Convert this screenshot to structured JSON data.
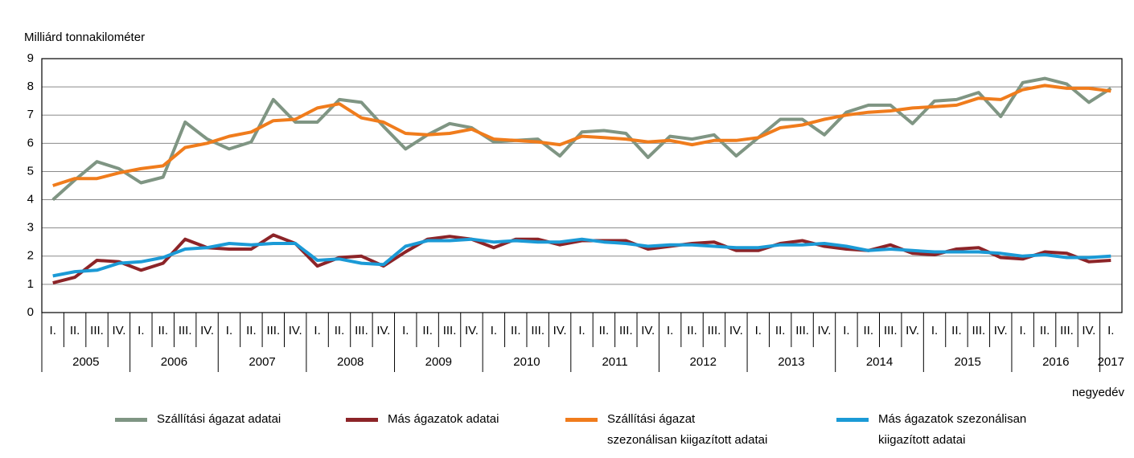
{
  "chart_data": {
    "type": "line",
    "y_axis_label": "Milliárd tonnakilométer",
    "x_axis_label": "negyedév",
    "categories": [
      "I.",
      "II.",
      "III.",
      "IV.",
      "I.",
      "II.",
      "III.",
      "IV.",
      "I.",
      "II.",
      "III.",
      "IV.",
      "I.",
      "II.",
      "III.",
      "IV.",
      "I.",
      "II.",
      "III.",
      "IV.",
      "I.",
      "II.",
      "III.",
      "IV.",
      "I.",
      "II.",
      "III.",
      "IV.",
      "I.",
      "II.",
      "III.",
      "IV.",
      "I.",
      "II.",
      "III.",
      "IV.",
      "I.",
      "II.",
      "III.",
      "IV.",
      "I.",
      "II.",
      "III.",
      "IV.",
      "I.",
      "II.",
      "III.",
      "IV.",
      "I."
    ],
    "year_groups": [
      "2005",
      "2006",
      "2007",
      "2008",
      "2009",
      "2010",
      "2011",
      "2012",
      "2013",
      "2014",
      "2015",
      "2016",
      "2017"
    ],
    "ylim": [
      0,
      9
    ],
    "yticks": [
      0,
      1,
      2,
      3,
      4,
      5,
      6,
      7,
      8,
      9
    ],
    "grid": true,
    "series": [
      {
        "name": "Szállítási ágazat adatai",
        "color": "#7f9583",
        "values": [
          4.0,
          4.7,
          5.35,
          5.1,
          4.6,
          4.8,
          6.75,
          6.15,
          5.8,
          6.05,
          7.55,
          6.75,
          6.75,
          7.55,
          7.45,
          6.6,
          5.8,
          6.3,
          6.7,
          6.55,
          6.05,
          6.1,
          6.15,
          5.55,
          6.4,
          6.45,
          6.35,
          5.5,
          6.25,
          6.15,
          6.3,
          5.55,
          6.2,
          6.85,
          6.85,
          6.3,
          7.1,
          7.35,
          7.35,
          6.7,
          7.5,
          7.55,
          7.8,
          6.95,
          8.15,
          8.3,
          8.1,
          7.45,
          7.95
        ]
      },
      {
        "name": "Más ágazatok adatai",
        "color": "#8c2428",
        "values": [
          1.05,
          1.25,
          1.85,
          1.8,
          1.5,
          1.75,
          2.6,
          2.3,
          2.25,
          2.25,
          2.75,
          2.45,
          1.65,
          1.95,
          2.0,
          1.65,
          2.15,
          2.6,
          2.7,
          2.6,
          2.3,
          2.6,
          2.6,
          2.4,
          2.55,
          2.55,
          2.55,
          2.25,
          2.35,
          2.45,
          2.5,
          2.2,
          2.2,
          2.45,
          2.55,
          2.35,
          2.25,
          2.2,
          2.4,
          2.1,
          2.05,
          2.25,
          2.3,
          1.95,
          1.9,
          2.15,
          2.1,
          1.8,
          1.85
        ]
      },
      {
        "name": "Szállítási ágazat szezonálisan kiigazított adatai",
        "color": "#f07c1c",
        "values": [
          4.5,
          4.75,
          4.75,
          4.95,
          5.1,
          5.2,
          5.85,
          6.0,
          6.25,
          6.4,
          6.8,
          6.85,
          7.25,
          7.4,
          6.9,
          6.75,
          6.35,
          6.3,
          6.35,
          6.5,
          6.15,
          6.1,
          6.05,
          5.95,
          6.25,
          6.2,
          6.15,
          6.05,
          6.1,
          5.95,
          6.1,
          6.1,
          6.2,
          6.55,
          6.65,
          6.85,
          7.0,
          7.1,
          7.15,
          7.25,
          7.3,
          7.35,
          7.6,
          7.55,
          7.9,
          8.05,
          7.95,
          7.95,
          7.85
        ]
      },
      {
        "name": "Más ágazatok szezonálisan kiigazított adatai",
        "color": "#1b9ad6",
        "values": [
          1.3,
          1.45,
          1.5,
          1.75,
          1.8,
          1.95,
          2.25,
          2.3,
          2.45,
          2.4,
          2.45,
          2.45,
          1.85,
          1.9,
          1.75,
          1.7,
          2.35,
          2.55,
          2.55,
          2.6,
          2.5,
          2.55,
          2.5,
          2.5,
          2.6,
          2.5,
          2.45,
          2.35,
          2.4,
          2.4,
          2.35,
          2.3,
          2.3,
          2.4,
          2.4,
          2.45,
          2.35,
          2.2,
          2.25,
          2.2,
          2.15,
          2.15,
          2.15,
          2.1,
          2.0,
          2.05,
          1.95,
          1.95,
          2.0
        ]
      }
    ]
  }
}
